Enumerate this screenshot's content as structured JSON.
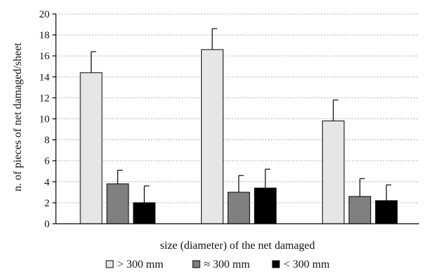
{
  "chart_data": {
    "type": "bar",
    "title": "",
    "xlabel": "size (diameter)  of the net damaged",
    "ylabel": "n. of pieces of net damaged/sheet",
    "ylim": [
      0,
      20
    ],
    "yticks": [
      0,
      2,
      4,
      6,
      8,
      10,
      12,
      14,
      16,
      18,
      20
    ],
    "grid": "horizontal dotted",
    "legend_position": "bottom",
    "categories": [
      "",
      "",
      ""
    ],
    "series": [
      {
        "name": "> 300 mm",
        "color": "#e6e6e6",
        "values": [
          14.4,
          16.6,
          9.8
        ],
        "error": [
          2.0,
          2.0,
          2.0
        ]
      },
      {
        "name": "≈ 300 mm",
        "color": "#808080",
        "values": [
          3.8,
          3.0,
          2.6
        ],
        "error": [
          1.3,
          1.6,
          1.7
        ]
      },
      {
        "name": "< 300 mm",
        "color": "#000000",
        "values": [
          2.0,
          3.4,
          2.2
        ],
        "error": [
          1.6,
          1.8,
          1.5
        ]
      }
    ]
  }
}
